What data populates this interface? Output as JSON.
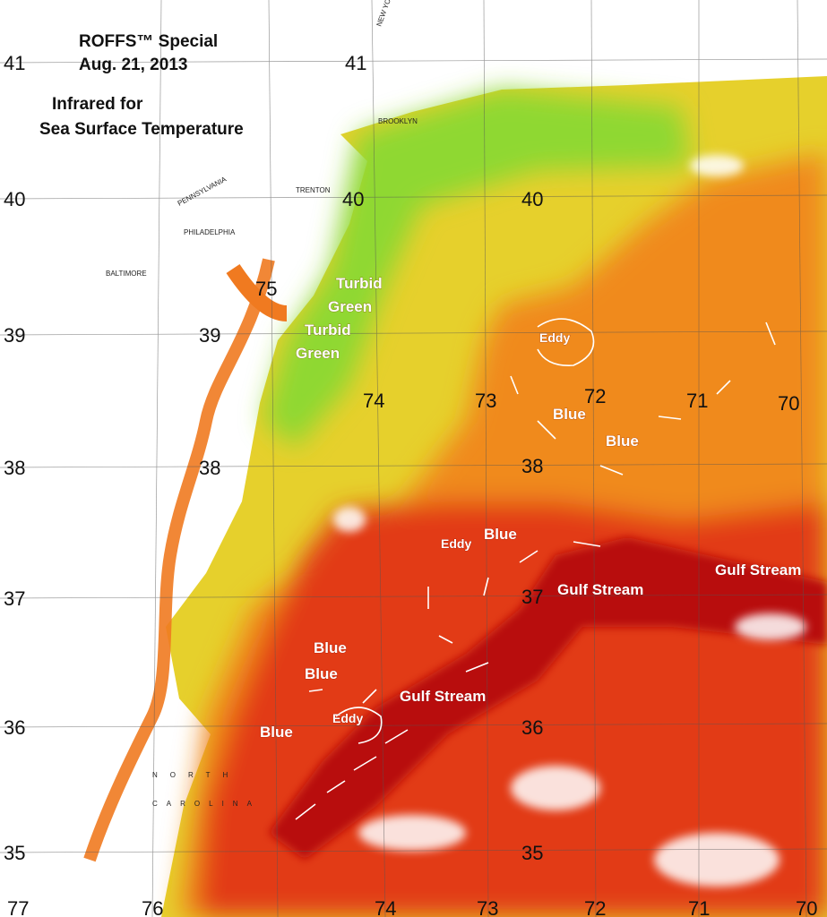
{
  "header": {
    "title": [
      "ROFFS™ Special",
      "Aug. 21, 2013"
    ],
    "subtitle": [
      "Infrared for",
      "Sea Surface Temperature"
    ]
  },
  "grid_labels": {
    "left_latitude": [
      "41",
      "40",
      "39",
      "38",
      "37",
      "36",
      "35"
    ],
    "inner_latitude": [
      "41",
      "40",
      "39",
      "38",
      "40",
      "38",
      "37",
      "36",
      "35"
    ],
    "longitude": [
      "75",
      "74",
      "73",
      "72",
      "71",
      "70"
    ],
    "bottom_longitude": [
      "77",
      "76",
      "74",
      "73",
      "72",
      "71",
      "70"
    ]
  },
  "annotations": [
    "Turbid",
    "Green",
    "Turbid",
    "Green",
    "Eddy",
    "Blue",
    "Blue",
    "Eddy",
    "Blue",
    "Gulf Stream",
    "Gulf Stream",
    "Blue",
    "Blue",
    "Gulf Stream",
    "Eddy",
    "Blue"
  ],
  "map_labels": [
    "PENNSYLVANIA",
    "PHILADELPHIA",
    "TRENTON",
    "BALTIMORE",
    "BROOKLYN",
    "NEW YORK",
    "NORTH",
    "CAROLINA"
  ]
}
